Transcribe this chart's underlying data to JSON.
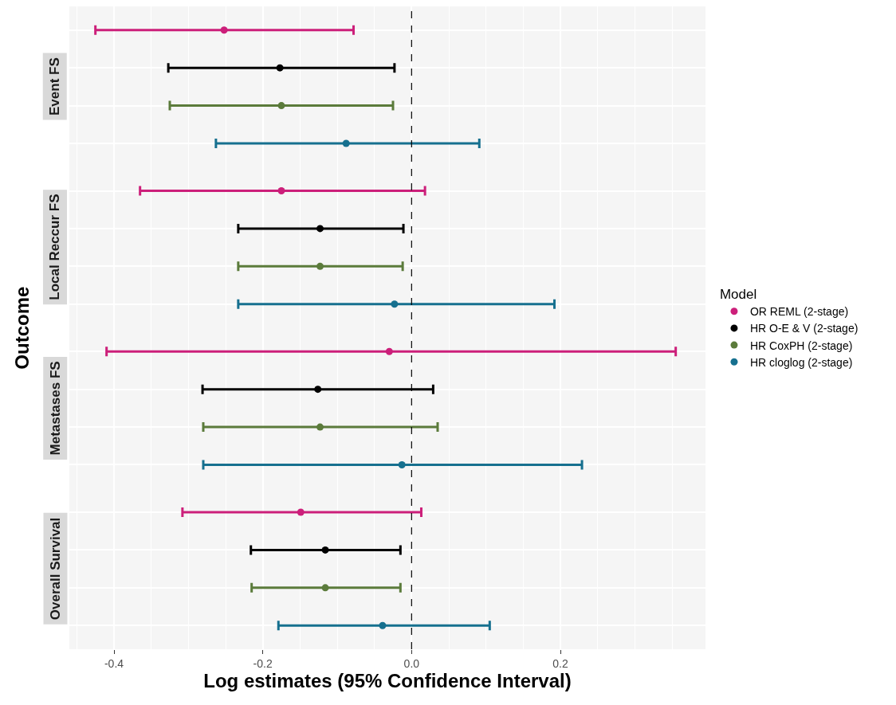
{
  "chart_data": {
    "type": "scatter",
    "orientation": "horizontal",
    "xlabel": "Log estimates (95% Confidence Interval)",
    "ylabel": "Outcome",
    "legend_title": "Model",
    "categories": [
      "Event FS",
      "Local Reccur FS",
      "Metastases FS",
      "Overall Survival"
    ],
    "xlim": [
      -0.46,
      0.395
    ],
    "xticks": [
      -0.4,
      -0.2,
      {
        "value": 0,
        "label": "0.0"
      },
      0.2
    ],
    "grid": true,
    "legend": "right",
    "marker": "circle",
    "ref_lines": [
      {
        "axis": "x",
        "value": 0,
        "color": "#000000",
        "line_style": "dashed"
      }
    ],
    "series": [
      {
        "name": "OR REML (2-stage)",
        "color": "#cc1f7a",
        "values": [
          -0.252,
          -0.175,
          -0.03,
          -0.149
        ],
        "errors": [
          [
            -0.425,
            -0.078
          ],
          [
            -0.365,
            0.018
          ],
          [
            -0.41,
            0.355
          ],
          [
            -0.308,
            0.013
          ]
        ]
      },
      {
        "name": "HR O-E & V (2-stage)",
        "color": "#000000",
        "values": [
          -0.177,
          -0.123,
          -0.126,
          -0.116
        ],
        "errors": [
          [
            -0.327,
            -0.023
          ],
          [
            -0.233,
            -0.011
          ],
          [
            -0.281,
            0.029
          ],
          [
            -0.216,
            -0.015
          ]
        ]
      },
      {
        "name": "HR CoxPH (2-stage)",
        "color": "#5b7b3b",
        "values": [
          -0.175,
          -0.123,
          -0.123,
          -0.116
        ],
        "errors": [
          [
            -0.325,
            -0.025
          ],
          [
            -0.233,
            -0.012
          ],
          [
            -0.28,
            0.035
          ],
          [
            -0.215,
            -0.015
          ]
        ]
      },
      {
        "name": "HR cloglog (2-stage)",
        "color": "#16708f",
        "values": [
          -0.088,
          -0.023,
          -0.013,
          -0.039
        ],
        "errors": [
          [
            -0.263,
            0.091
          ],
          [
            -0.233,
            0.192
          ],
          [
            -0.28,
            0.229
          ],
          [
            -0.179,
            0.105
          ]
        ]
      }
    ]
  }
}
